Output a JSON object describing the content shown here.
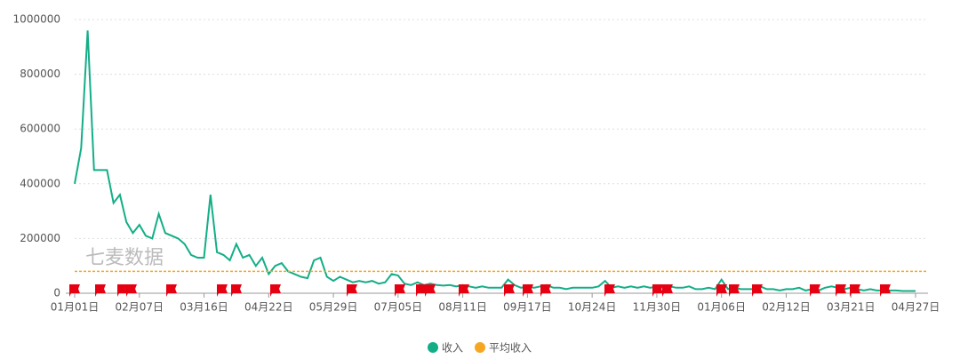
{
  "chart_data": {
    "type": "line",
    "watermark": "七麦数据",
    "categories": [
      "01月01日",
      null,
      null,
      null,
      null,
      null,
      null,
      null,
      null,
      null,
      "02月07日",
      null,
      null,
      null,
      null,
      null,
      null,
      null,
      null,
      null,
      "03月16日",
      null,
      null,
      null,
      null,
      null,
      null,
      null,
      null,
      null,
      "04月22日",
      null,
      null,
      null,
      null,
      null,
      null,
      null,
      null,
      null,
      "05月29日",
      null,
      null,
      null,
      null,
      null,
      null,
      null,
      null,
      null,
      "07月05日",
      null,
      null,
      null,
      null,
      null,
      null,
      null,
      null,
      null,
      "08月11日",
      null,
      null,
      null,
      null,
      null,
      null,
      null,
      null,
      null,
      "09月17日",
      null,
      null,
      null,
      null,
      null,
      null,
      null,
      null,
      null,
      "10月24日",
      null,
      null,
      null,
      null,
      null,
      null,
      null,
      null,
      null,
      "11月30日",
      null,
      null,
      null,
      null,
      null,
      null,
      null,
      null,
      null,
      "01月06日",
      null,
      null,
      null,
      null,
      null,
      null,
      null,
      null,
      null,
      "02月12日",
      null,
      null,
      null,
      null,
      null,
      null,
      null,
      null,
      null,
      "03月21日",
      null,
      null,
      null,
      null,
      null,
      null,
      null,
      null,
      null,
      "04月27日"
    ],
    "series": [
      {
        "name": "收入",
        "color": "#13ae87",
        "values": [
          400000,
          530000,
          960000,
          450000,
          450000,
          450000,
          330000,
          360000,
          260000,
          220000,
          250000,
          210000,
          200000,
          290000,
          220000,
          210000,
          200000,
          180000,
          140000,
          130000,
          130000,
          360000,
          150000,
          140000,
          120000,
          180000,
          130000,
          140000,
          100000,
          130000,
          70000,
          100000,
          110000,
          80000,
          70000,
          60000,
          55000,
          120000,
          130000,
          60000,
          45000,
          60000,
          50000,
          40000,
          45000,
          40000,
          45000,
          35000,
          40000,
          70000,
          65000,
          35000,
          30000,
          40000,
          30000,
          35000,
          30000,
          28000,
          30000,
          25000,
          30000,
          25000,
          20000,
          25000,
          20000,
          20000,
          20000,
          50000,
          30000,
          20000,
          25000,
          20000,
          25000,
          30000,
          20000,
          20000,
          15000,
          20000,
          20000,
          20000,
          20000,
          25000,
          45000,
          20000,
          25000,
          20000,
          25000,
          20000,
          25000,
          20000,
          25000,
          20000,
          25000,
          20000,
          20000,
          25000,
          15000,
          15000,
          20000,
          15000,
          50000,
          15000,
          20000,
          15000,
          15000,
          15000,
          25000,
          15000,
          15000,
          10000,
          15000,
          15000,
          20000,
          10000,
          15000,
          10000,
          20000,
          25000,
          20000,
          15000,
          20000,
          15000,
          10000,
          15000,
          10000,
          10000,
          10000,
          10000,
          8000,
          8000,
          8000
        ]
      }
    ],
    "average": {
      "name": "平均收入",
      "color": "#f5a623",
      "value": 80000
    },
    "ylim": [
      0,
      1000000
    ],
    "yticks": [
      0,
      200000,
      400000,
      600000,
      800000,
      1000000
    ],
    "grid": true
  }
}
